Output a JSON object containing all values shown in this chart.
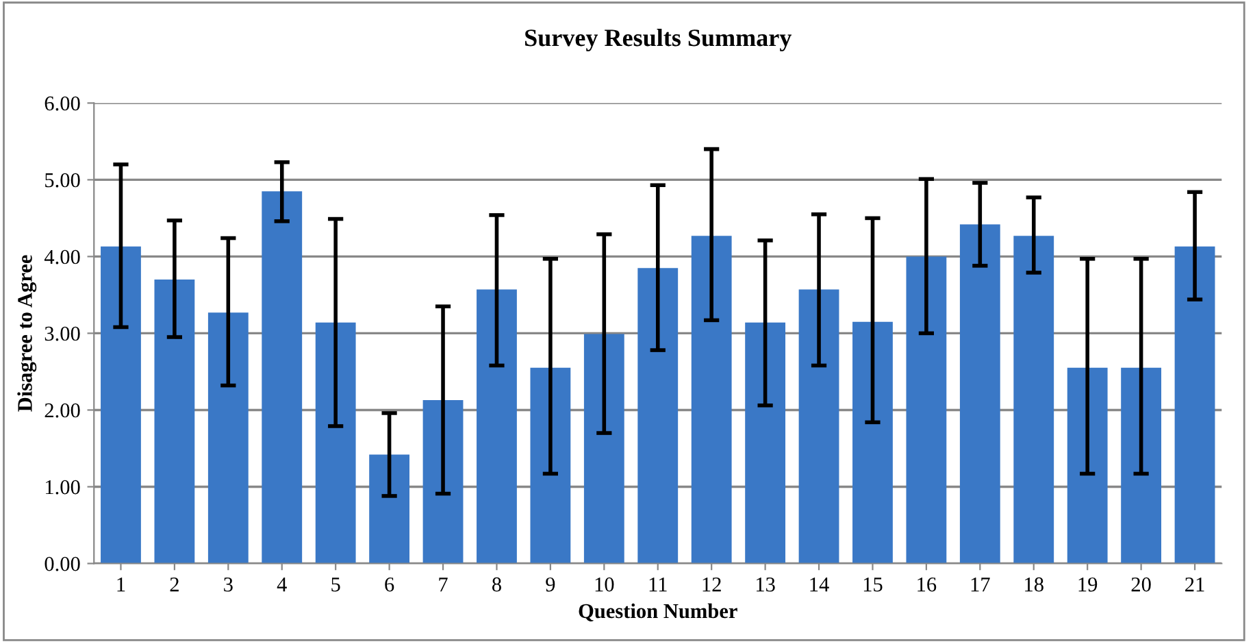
{
  "chart_data": {
    "type": "bar",
    "title": "Survey Results Summary",
    "xlabel": "Question Number",
    "ylabel": "Disagree to Agree",
    "categories": [
      "1",
      "2",
      "3",
      "4",
      "5",
      "6",
      "7",
      "8",
      "9",
      "10",
      "11",
      "12",
      "13",
      "14",
      "15",
      "16",
      "17",
      "18",
      "19",
      "20",
      "21"
    ],
    "values": [
      4.13,
      3.7,
      3.27,
      4.85,
      3.14,
      1.42,
      2.13,
      3.57,
      2.55,
      2.99,
      3.85,
      4.27,
      3.14,
      3.57,
      3.15,
      4.0,
      4.42,
      4.27,
      2.55,
      2.55,
      4.13
    ],
    "errors": [
      [
        3.08,
        5.2
      ],
      [
        2.95,
        4.47
      ],
      [
        2.32,
        4.24
      ],
      [
        4.46,
        5.23
      ],
      [
        1.79,
        4.49
      ],
      [
        0.88,
        1.96
      ],
      [
        0.91,
        3.35
      ],
      [
        2.58,
        4.54
      ],
      [
        1.17,
        3.97
      ],
      [
        1.7,
        4.29
      ],
      [
        2.78,
        4.93
      ],
      [
        3.17,
        5.4
      ],
      [
        2.06,
        4.21
      ],
      [
        2.58,
        4.55
      ],
      [
        1.84,
        4.5
      ],
      [
        3.0,
        5.01
      ],
      [
        3.88,
        4.96
      ],
      [
        3.79,
        4.77
      ],
      [
        1.17,
        3.97
      ],
      [
        1.17,
        3.97
      ],
      [
        3.44,
        4.84
      ]
    ],
    "color": "#3a78c6",
    "ylim": [
      0,
      6
    ],
    "yticks": [
      {
        "value": 0,
        "label": "0.00"
      },
      {
        "value": 1,
        "label": "1.00"
      },
      {
        "value": 2,
        "label": "2.00"
      },
      {
        "value": 3,
        "label": "3.00"
      },
      {
        "value": 4,
        "label": "4.00"
      },
      {
        "value": 5,
        "label": "5.00"
      },
      {
        "value": 6,
        "label": "6.00"
      }
    ],
    "grid": "y"
  }
}
